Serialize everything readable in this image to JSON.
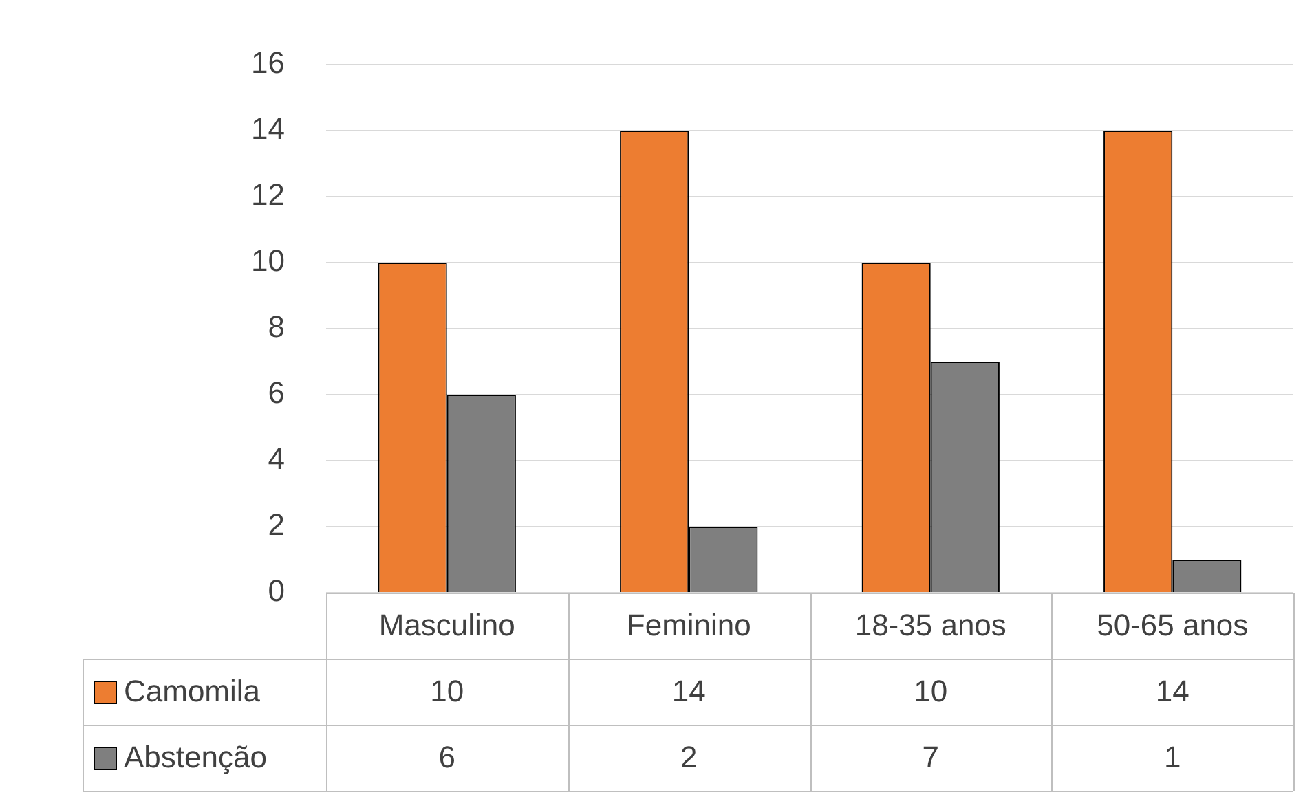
{
  "chart_data": {
    "type": "bar",
    "categories": [
      "Masculino",
      "Feminino",
      "18-35 anos",
      "50-65 anos"
    ],
    "series": [
      {
        "name": "Camomila",
        "color": "#ed7d31",
        "values": [
          10,
          14,
          10,
          14
        ]
      },
      {
        "name": "Abstenção",
        "color": "#7f7f7f",
        "values": [
          6,
          2,
          7,
          1
        ]
      }
    ],
    "ylim": [
      0,
      16
    ],
    "yticks": [
      0,
      2,
      4,
      6,
      8,
      10,
      12,
      14,
      16
    ],
    "grid": "y",
    "legend": "bottom",
    "data_labels": true
  }
}
